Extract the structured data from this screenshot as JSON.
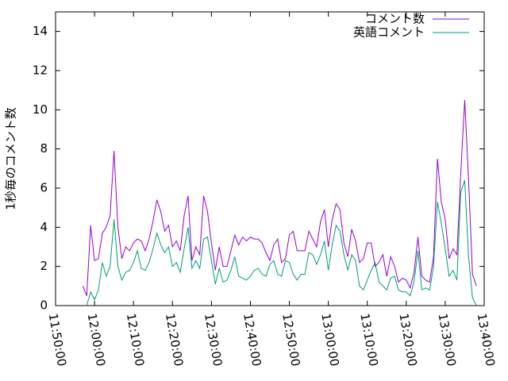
{
  "chart_data": {
    "type": "line",
    "ylabel": "1秒毎のコメント数",
    "x": [
      "11:57:00",
      "11:58:00",
      "11:59:00",
      "12:00:00",
      "12:01:00",
      "12:02:00",
      "12:03:00",
      "12:04:00",
      "12:05:00",
      "12:06:00",
      "12:07:00",
      "12:08:00",
      "12:09:00",
      "12:10:00",
      "12:11:00",
      "12:12:00",
      "12:13:00",
      "12:14:00",
      "12:15:00",
      "12:16:00",
      "12:17:00",
      "12:18:00",
      "12:19:00",
      "12:20:00",
      "12:21:00",
      "12:22:00",
      "12:23:00",
      "12:24:00",
      "12:25:00",
      "12:26:00",
      "12:27:00",
      "12:28:00",
      "12:29:00",
      "12:30:00",
      "12:31:00",
      "12:32:00",
      "12:33:00",
      "12:34:00",
      "12:35:00",
      "12:36:00",
      "12:37:00",
      "12:38:00",
      "12:39:00",
      "12:40:00",
      "12:41:00",
      "12:42:00",
      "12:43:00",
      "12:44:00",
      "12:45:00",
      "12:46:00",
      "12:47:00",
      "12:48:00",
      "12:49:00",
      "12:50:00",
      "12:51:00",
      "12:52:00",
      "12:53:00",
      "12:54:00",
      "12:55:00",
      "12:56:00",
      "12:57:00",
      "12:58:00",
      "12:59:00",
      "13:00:00",
      "13:01:00",
      "13:02:00",
      "13:03:00",
      "13:04:00",
      "13:05:00",
      "13:06:00",
      "13:07:00",
      "13:08:00",
      "13:09:00",
      "13:10:00",
      "13:11:00",
      "13:12:00",
      "13:13:00",
      "13:14:00",
      "13:15:00",
      "13:16:00",
      "13:17:00",
      "13:18:00",
      "13:19:00",
      "13:20:00",
      "13:21:00",
      "13:22:00",
      "13:23:00",
      "13:24:00",
      "13:25:00",
      "13:26:00",
      "13:27:00",
      "13:28:00",
      "13:29:00",
      "13:30:00",
      "13:31:00",
      "13:32:00",
      "13:33:00",
      "13:34:00",
      "13:35:00",
      "13:36:00",
      "13:37:00",
      "13:38:00"
    ],
    "series": [
      {
        "name": "コメント数",
        "color": "#9400d3",
        "values": [
          1.0,
          0.5,
          4.1,
          2.3,
          2.4,
          3.7,
          4.0,
          4.6,
          7.9,
          4.0,
          2.4,
          3.0,
          2.8,
          3.2,
          3.4,
          3.3,
          2.8,
          3.4,
          4.3,
          5.4,
          4.8,
          3.8,
          4.1,
          3.0,
          3.3,
          2.8,
          4.6,
          5.6,
          2.3,
          3.0,
          2.6,
          5.6,
          4.8,
          3.2,
          1.8,
          3.0,
          2.0,
          2.0,
          2.8,
          3.6,
          3.1,
          3.5,
          3.3,
          3.5,
          3.4,
          3.4,
          3.2,
          2.7,
          2.3,
          3.1,
          3.4,
          2.2,
          2.4,
          3.6,
          3.8,
          2.8,
          2.8,
          2.8,
          3.8,
          3.4,
          3.0,
          4.3,
          4.9,
          3.0,
          4.4,
          5.2,
          4.9,
          3.2,
          2.5,
          3.9,
          3.3,
          2.2,
          2.4,
          3.2,
          3.2,
          2.0,
          2.2,
          2.6,
          1.5,
          2.5,
          2.0,
          1.2,
          1.4,
          1.3,
          0.9,
          1.7,
          3.5,
          1.5,
          1.3,
          1.2,
          2.5,
          7.5,
          5.3,
          4.4,
          2.4,
          2.9,
          2.6,
          6.8,
          10.5,
          6.4,
          1.6,
          1.0
        ]
      },
      {
        "name": "英語コメント",
        "color": "#009e73",
        "values": [
          null,
          0.0,
          0.7,
          0.3,
          0.8,
          2.2,
          1.5,
          2.0,
          4.4,
          2.0,
          1.3,
          1.7,
          1.8,
          2.2,
          2.8,
          1.9,
          1.8,
          2.2,
          2.9,
          3.7,
          3.1,
          2.7,
          3.0,
          2.0,
          2.2,
          1.7,
          2.9,
          4.0,
          1.9,
          2.3,
          1.9,
          3.4,
          3.5,
          2.3,
          1.1,
          1.9,
          1.2,
          1.3,
          1.8,
          2.5,
          1.5,
          1.4,
          1.3,
          1.5,
          1.8,
          1.9,
          1.6,
          1.5,
          2.1,
          2.3,
          1.6,
          1.5,
          2.3,
          2.2,
          1.6,
          1.3,
          1.6,
          1.6,
          2.7,
          2.6,
          2.1,
          2.6,
          3.3,
          1.8,
          3.1,
          4.1,
          3.8,
          2.6,
          1.8,
          2.6,
          2.3,
          1.0,
          0.8,
          1.3,
          1.8,
          2.2,
          1.2,
          1.0,
          0.8,
          1.4,
          1.5,
          0.8,
          0.7,
          0.7,
          0.5,
          1.2,
          2.8,
          0.8,
          0.9,
          0.8,
          2.0,
          5.3,
          4.2,
          2.9,
          1.5,
          1.8,
          1.3,
          5.8,
          6.4,
          2.5,
          0.4,
          0.0
        ]
      }
    ],
    "xlim": [
      "11:50:00",
      "13:40:00"
    ],
    "xticks": [
      "11:50:00",
      "12:00:00",
      "12:10:00",
      "12:20:00",
      "12:30:00",
      "12:40:00",
      "12:50:00",
      "13:00:00",
      "13:10:00",
      "13:20:00",
      "13:30:00",
      "13:40:00"
    ],
    "ylim": [
      0,
      15
    ],
    "yticks": [
      0,
      2,
      4,
      6,
      8,
      10,
      12,
      14
    ],
    "legend": "top-right"
  }
}
